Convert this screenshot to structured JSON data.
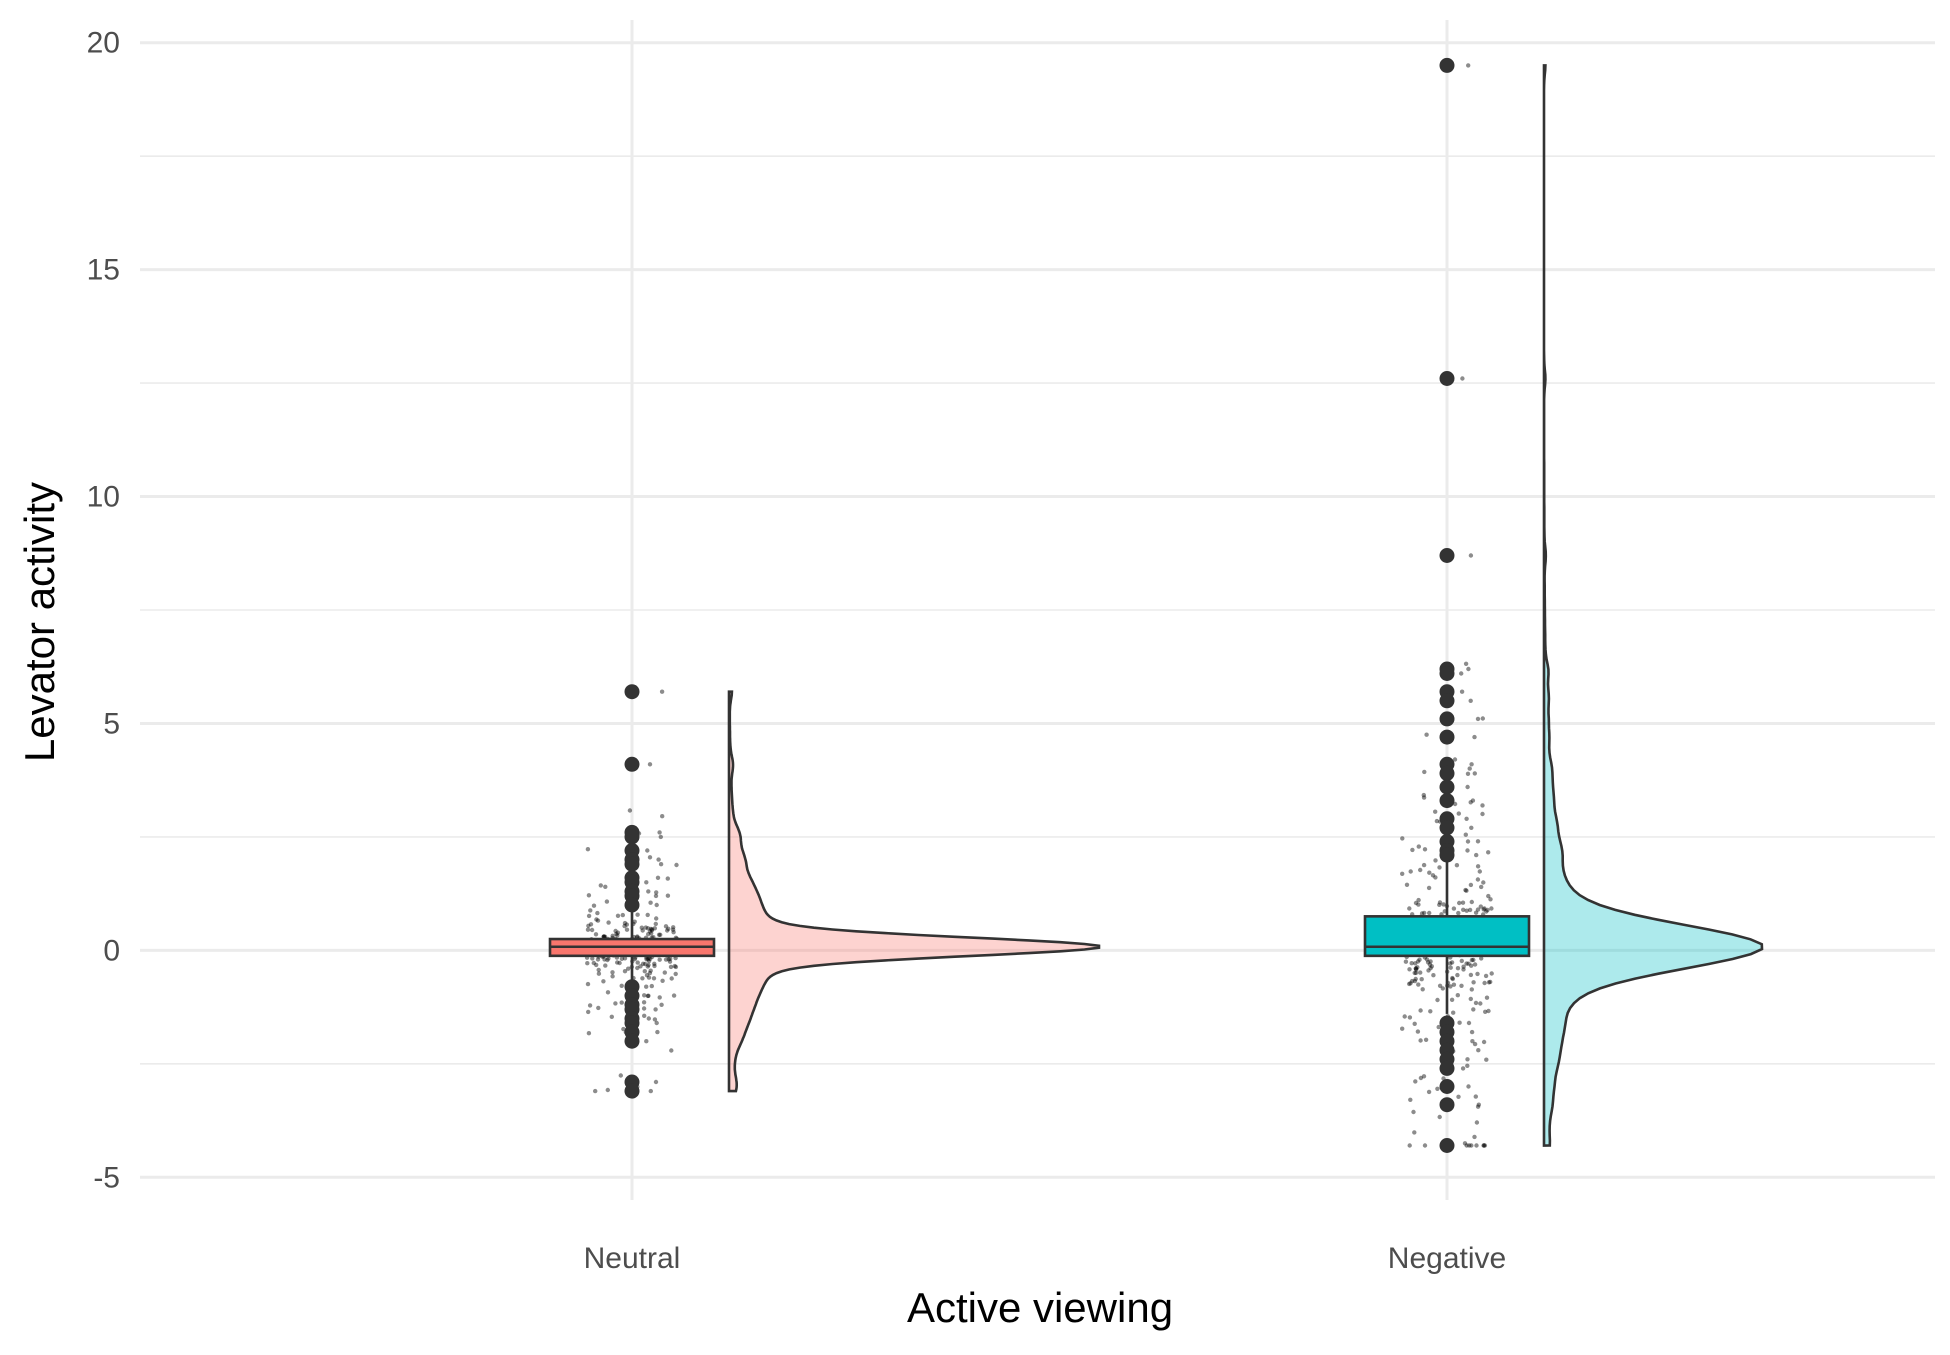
{
  "chart_data": {
    "type": "raincloud",
    "title": "",
    "xlabel": "Active viewing",
    "ylabel": "Levator activity",
    "ylim": [
      -5.5,
      20.5
    ],
    "y_ticks": [
      -5,
      0,
      5,
      10,
      15,
      20
    ],
    "y_tick_labels": [
      "-5",
      "0",
      "5",
      "10",
      "15",
      "20"
    ],
    "grid": true,
    "legend": "none",
    "categories": [
      "Neutral",
      "Negative"
    ],
    "series": [
      {
        "category": "Neutral",
        "color": "#F8766D",
        "box": {
          "q1": -0.12,
          "median": 0.08,
          "q3": 0.25,
          "whisker_low": -1.8,
          "whisker_high": 2.5
        },
        "outliers": [
          5.7,
          4.1,
          2.6,
          2.5,
          2.2,
          2.0,
          1.9,
          1.6,
          1.5,
          1.3,
          1.2,
          1.0,
          -0.8,
          -1.0,
          -1.2,
          -1.3,
          -1.5,
          -1.6,
          -1.8,
          -2.0,
          -2.9,
          -3.1
        ],
        "min": -3.1,
        "max": 5.7
      },
      {
        "category": "Negative",
        "color": "#00BFC4",
        "box": {
          "q1": -0.12,
          "median": 0.08,
          "q3": 0.75,
          "whisker_low": -1.4,
          "whisker_high": 2.0
        },
        "outliers": [
          19.5,
          12.6,
          8.7,
          6.2,
          6.1,
          5.7,
          5.5,
          5.1,
          4.7,
          4.1,
          3.9,
          3.6,
          3.3,
          2.9,
          2.7,
          2.4,
          2.2,
          2.1,
          -1.6,
          -1.8,
          -2.0,
          -2.2,
          -2.4,
          -2.6,
          -3.0,
          -3.4,
          -4.3
        ],
        "min": -4.3,
        "max": 19.5
      }
    ]
  }
}
